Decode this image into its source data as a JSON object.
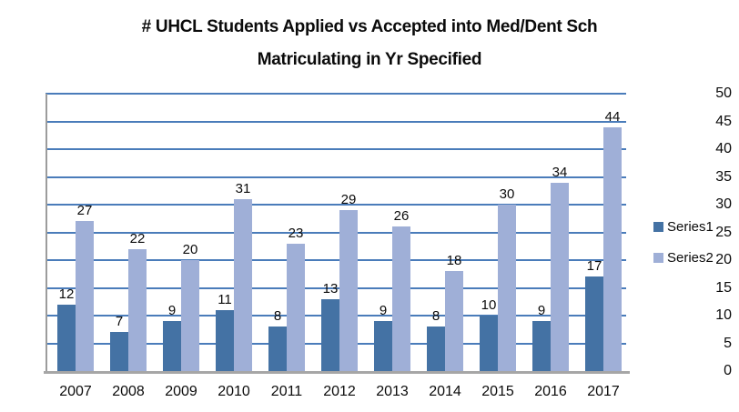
{
  "title": {
    "line1": "# UHCL Students Applied vs Accepted into Med/Dent Sch",
    "line2": "Matriculating in Yr Specified"
  },
  "chart_data": {
    "type": "bar",
    "title": "# UHCL Students Applied vs Accepted into Med/Dent Sch Matriculating in Yr Specified",
    "categories": [
      "2007",
      "2008",
      "2009",
      "2010",
      "2011",
      "2012",
      "2013",
      "2014",
      "2015",
      "2016",
      "2017"
    ],
    "series": [
      {
        "name": "Series1",
        "color": "#4472a4",
        "values": [
          12,
          7,
          9,
          11,
          8,
          13,
          9,
          8,
          10,
          9,
          17
        ]
      },
      {
        "name": "Series2",
        "color": "#9fafd7",
        "values": [
          27,
          22,
          20,
          31,
          23,
          29,
          26,
          18,
          30,
          34,
          44
        ]
      }
    ],
    "xlabel": "",
    "ylabel": "",
    "ylim": [
      0,
      50
    ],
    "ytick_step": 5,
    "grid": "horizontal",
    "gridline_color": "#4a7cba",
    "axis_color": "#a6a6a6",
    "data_labels": true,
    "legend_position": "right"
  }
}
